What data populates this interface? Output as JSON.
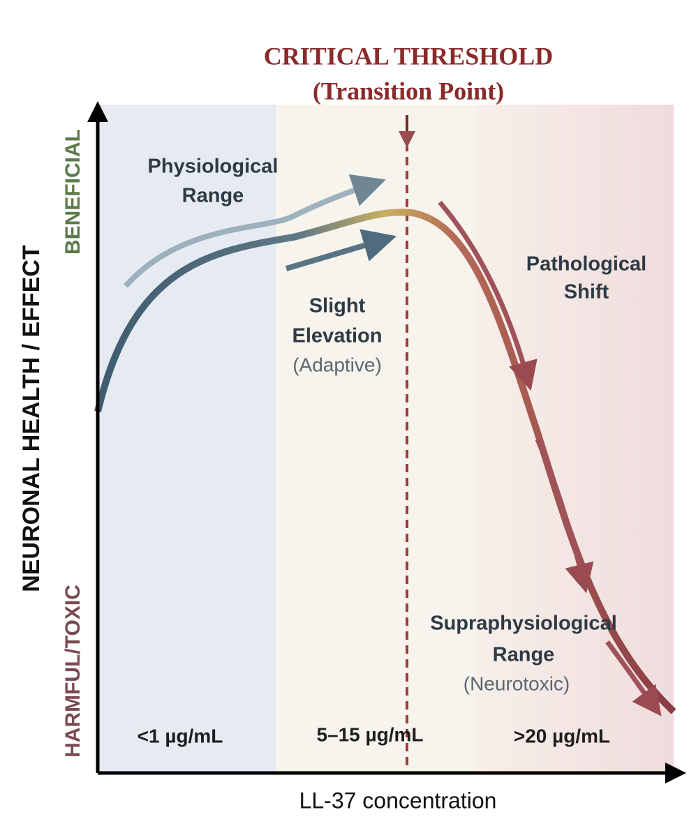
{
  "title": {
    "line1": "CRITICAL THRESHOLD",
    "line2": "(Transition Point)"
  },
  "axes": {
    "y_label": "NEURONAL HEALTH / EFFECT",
    "y_top": "BENEFICIAL",
    "y_bottom": "HARMFUL/TOXIC",
    "x_label": "LL-37 concentration"
  },
  "annotations": {
    "physiological": [
      "Physiological",
      "Range"
    ],
    "slight": [
      "Slight",
      "Elevation",
      "(Adaptive)"
    ],
    "pathological": [
      "Pathological",
      "Shift"
    ],
    "supra": [
      "Supraphysiological",
      "Range",
      "(Neurotoxic)"
    ]
  },
  "regions": [
    "<1 µg/mL",
    "5–15 µg/mL",
    ">20 µg/mL"
  ]
}
